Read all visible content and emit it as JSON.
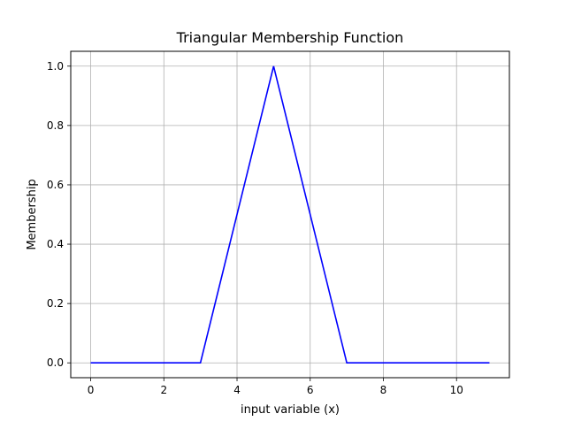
{
  "chart_data": {
    "type": "line",
    "title": "Triangular Membership Function",
    "xlabel": "input variable (x)",
    "ylabel": "Membership",
    "xlim": [
      -0.545,
      11.445
    ],
    "ylim": [
      -0.05,
      1.05
    ],
    "xticks": [
      0,
      2,
      4,
      6,
      8,
      10
    ],
    "yticks": [
      0.0,
      0.2,
      0.4,
      0.6,
      0.8,
      1.0
    ],
    "xtick_labels": [
      "0",
      "2",
      "4",
      "6",
      "8",
      "10"
    ],
    "ytick_labels": [
      "0.0",
      "0.2",
      "0.4",
      "0.6",
      "0.8",
      "1.0"
    ],
    "grid": true,
    "series": [
      {
        "color": "#0000ff",
        "x": [
          0,
          3,
          5,
          7,
          10.9
        ],
        "y": [
          0,
          0,
          1,
          0,
          0
        ]
      }
    ]
  }
}
